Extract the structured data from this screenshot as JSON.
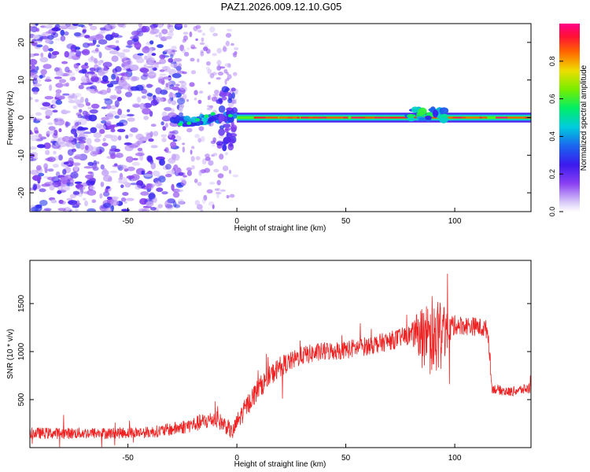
{
  "title": "PAZ1.2026.009.12.10.G05",
  "colors": {
    "snr_line": "#ee2222",
    "axis": "#000000",
    "colormap": [
      "#ffffff",
      "#c9b6f5",
      "#8a3ff2",
      "#5a1af0",
      "#1a22ee",
      "#00aaee",
      "#00ee88",
      "#44ee22",
      "#ccee00",
      "#ffaa00",
      "#ff2200",
      "#ff0077"
    ]
  },
  "chart_data": [
    {
      "type": "heatmap",
      "title": "PAZ1.2026.009.12.10.G05",
      "xlabel": "Height of straight line (km)",
      "ylabel": "Frequency (Hz)",
      "xlim": [
        -95,
        135
      ],
      "ylim": [
        -25,
        25
      ],
      "x_ticks": [
        -50,
        0,
        50,
        100
      ],
      "x_tick_labels": [
        "-50",
        "0",
        "50",
        "100"
      ],
      "y_ticks": [
        -20,
        -10,
        0,
        10,
        20
      ],
      "y_tick_labels": [
        "-20",
        "-10",
        "0",
        "10",
        "20"
      ],
      "colorbar": {
        "label": "Normalized spectral amplitude",
        "range": [
          0,
          1
        ],
        "ticks": [
          0.0,
          0.2,
          0.4,
          0.6,
          0.8
        ],
        "tick_labels": [
          "0.0",
          "0.2",
          "0.4",
          "0.6",
          "0.8"
        ]
      },
      "features": [
        {
          "name": "noise field",
          "x_range": [
            -95,
            -25
          ],
          "freq_range": [
            -25,
            25
          ],
          "amplitude": 0.15
        },
        {
          "name": "transition",
          "x_range": [
            -30,
            0
          ],
          "freq_center": -1,
          "amplitude": 0.35
        },
        {
          "name": "carrier line",
          "x_range": [
            0,
            135
          ],
          "freq": 0,
          "amplitude": 0.95
        },
        {
          "name": "disturbance",
          "x_range": [
            78,
            96
          ],
          "freq_center": 1,
          "amplitude": 0.45
        }
      ]
    },
    {
      "type": "line",
      "title": "",
      "xlabel": "Height of straight line (km)",
      "ylabel": "SNR (10 * v/v)",
      "xlim": [
        -95,
        135
      ],
      "ylim": [
        0,
        1950
      ],
      "x_ticks": [
        -50,
        0,
        50,
        100
      ],
      "x_tick_labels": [
        "-50",
        "0",
        "50",
        "100"
      ],
      "y_ticks": [
        500,
        1000,
        1500
      ],
      "y_tick_labels": [
        "500",
        "1000",
        "1500"
      ],
      "series": [
        {
          "name": "SNR",
          "x": [
            -95,
            -80,
            -60,
            -40,
            -30,
            -20,
            -15,
            -10,
            -5,
            -2,
            0,
            5,
            10,
            15,
            20,
            25,
            30,
            35,
            40,
            50,
            60,
            70,
            80,
            85,
            90,
            95,
            100,
            110,
            115,
            116,
            117,
            120,
            125,
            130,
            135
          ],
          "y": [
            150,
            150,
            150,
            160,
            190,
            240,
            270,
            300,
            230,
            150,
            260,
            450,
            620,
            740,
            850,
            900,
            960,
            980,
            1000,
            1020,
            1060,
            1110,
            1180,
            1200,
            1100,
            1230,
            1280,
            1260,
            1230,
            1000,
            620,
            600,
            580,
            600,
            620
          ],
          "noise_amplitude": [
            60,
            60,
            60,
            60,
            70,
            80,
            90,
            90,
            90,
            80,
            100,
            110,
            110,
            110,
            110,
            100,
            100,
            100,
            100,
            100,
            100,
            100,
            100,
            300,
            400,
            320,
            100,
            100,
            100,
            100,
            50,
            50,
            50,
            50,
            60
          ]
        }
      ]
    }
  ]
}
